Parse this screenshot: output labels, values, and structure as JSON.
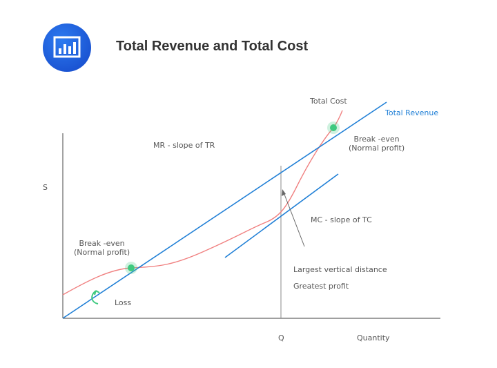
{
  "header": {
    "title": "Total Revenue and Total Cost",
    "icon": "bar-chart-icon"
  },
  "diagram": {
    "y_axis_label": "S",
    "x_axis_label": "Quantity",
    "q_label": "Q",
    "total_cost_label": "Total Cost",
    "total_revenue_label": "Total Revenue",
    "mr_label": "MR - slope of TR",
    "mc_label": "MC - slope of TC",
    "break_even_upper": {
      "line1": "Break -even",
      "line2": "(Normal profit)"
    },
    "break_even_lower": {
      "line1": "Break -even",
      "line2": "(Normal profit)"
    },
    "loss_label": "Loss",
    "largest_distance_label": "Largest vertical distance",
    "greatest_profit_label": "Greatest profit",
    "colors": {
      "revenue": "#1f7fd6",
      "cost": "#f07878",
      "break_even": "#3ec97f",
      "axis": "#555555"
    }
  }
}
